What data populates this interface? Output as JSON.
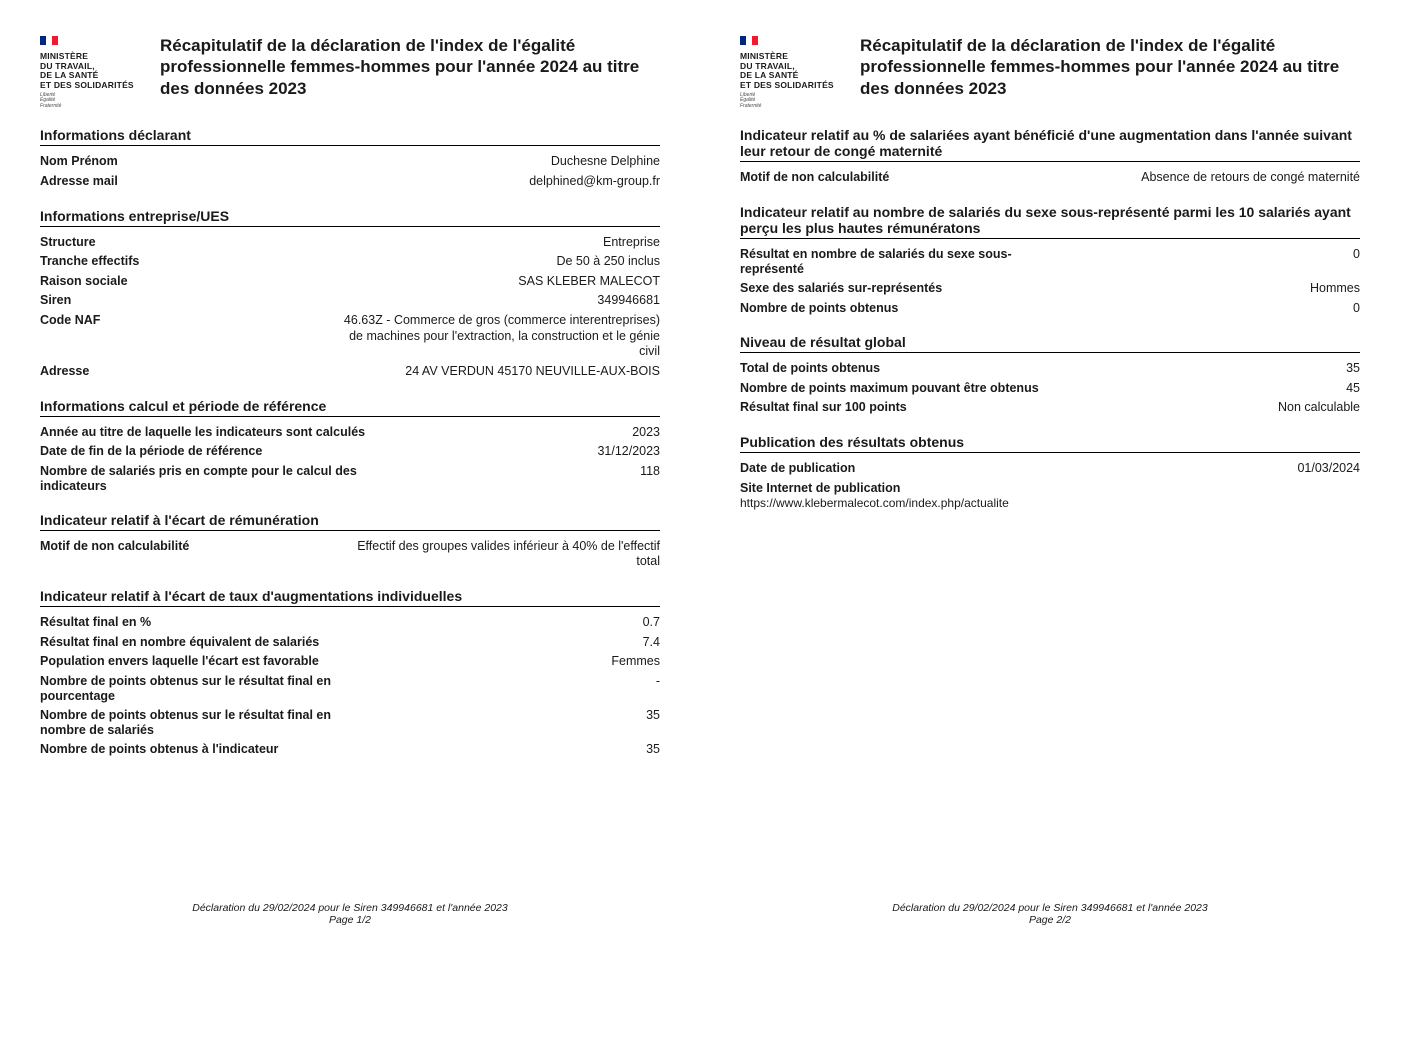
{
  "logo": {
    "ministry_line1": "MINISTÈRE",
    "ministry_line2": "DU TRAVAIL,",
    "ministry_line3": "DE LA SANTÉ",
    "ministry_line4": "ET DES SOLIDARITÉS",
    "motto_line1": "Liberté",
    "motto_line2": "Égalité",
    "motto_line3": "Fraternité"
  },
  "title": "Récapitulatif de la déclaration de l'index de l'égalité professionnelle femmes-hommes pour l'année 2024 au titre des données 2023",
  "sections": {
    "declarant": {
      "heading": "Informations déclarant",
      "nom_label": "Nom Prénom",
      "nom_value": "Duchesne Delphine",
      "mail_label": "Adresse mail",
      "mail_value": "delphined@km-group.fr"
    },
    "entreprise": {
      "heading": "Informations entreprise/UES",
      "structure_label": "Structure",
      "structure_value": "Entreprise",
      "tranche_label": "Tranche effectifs",
      "tranche_value": "De 50 à 250 inclus",
      "raison_label": "Raison sociale",
      "raison_value": "SAS KLEBER MALECOT",
      "siren_label": "Siren",
      "siren_value": "349946681",
      "naf_label": "Code NAF",
      "naf_value": "46.63Z - Commerce de gros (commerce interentreprises) de machines pour l'extraction, la construction et le génie civil",
      "adresse_label": "Adresse",
      "adresse_value": "24 AV VERDUN 45170 NEUVILLE-AUX-BOIS"
    },
    "calcul": {
      "heading": "Informations calcul et période de référence",
      "annee_label": "Année au titre de laquelle les indicateurs sont calculés",
      "annee_value": "2023",
      "datefin_label": "Date de fin de la période de référence",
      "datefin_value": "31/12/2023",
      "nbsal_label": "Nombre de salariés pris en compte pour le calcul des indicateurs",
      "nbsal_value": "118"
    },
    "remun": {
      "heading": "Indicateur relatif à l'écart de rémunération",
      "motif_label": "Motif de non calculabilité",
      "motif_value": "Effectif des groupes valides inférieur à 40% de l'effectif total"
    },
    "augment": {
      "heading": "Indicateur relatif à l'écart de taux d'augmentations individuelles",
      "res_pct_label": "Résultat final en %",
      "res_pct_value": "0.7",
      "res_nb_label": "Résultat final en nombre équivalent de salariés",
      "res_nb_value": "7.4",
      "pop_label": "Population envers laquelle l'écart est favorable",
      "pop_value": "Femmes",
      "pts_pct_label": "Nombre de points obtenus sur le résultat final en pourcentage",
      "pts_pct_value": "-",
      "pts_nb_label": "Nombre de points obtenus sur le résultat final en nombre de salariés",
      "pts_nb_value": "35",
      "pts_ind_label": "Nombre de points obtenus à l'indicateur",
      "pts_ind_value": "35"
    },
    "maternite": {
      "heading": "Indicateur relatif au % de salariées ayant bénéficié d'une augmentation dans l'année suivant leur retour de congé maternité",
      "motif_label": "Motif de non calculabilité",
      "motif_value": "Absence de retours de congé maternité"
    },
    "hautes_remun": {
      "heading": "Indicateur relatif au nombre de salariés du sexe sous-représenté parmi les 10 salariés ayant perçu les plus hautes rémunératons",
      "res_label": "Résultat en nombre de salariés du sexe sous-représenté",
      "res_value": "0",
      "sexe_label": "Sexe des salariés sur-représentés",
      "sexe_value": "Hommes",
      "pts_label": "Nombre de points obtenus",
      "pts_value": "0"
    },
    "global": {
      "heading": "Niveau de résultat global",
      "total_label": "Total de points obtenus",
      "total_value": "35",
      "max_label": "Nombre de points maximum pouvant être obtenus",
      "max_value": "45",
      "final_label": "Résultat final sur 100 points",
      "final_value": "Non calculable"
    },
    "publication": {
      "heading": "Publication des résultats obtenus",
      "date_label": "Date de publication",
      "date_value": "01/03/2024",
      "site_label": "Site Internet de publication",
      "site_value": "https://www.klebermalecot.com/index.php/actualite"
    }
  },
  "footer": {
    "line": "Déclaration du 29/02/2024 pour le Siren 349946681 et l'année 2023",
    "page1": "Page 1/2",
    "page2": "Page 2/2"
  }
}
